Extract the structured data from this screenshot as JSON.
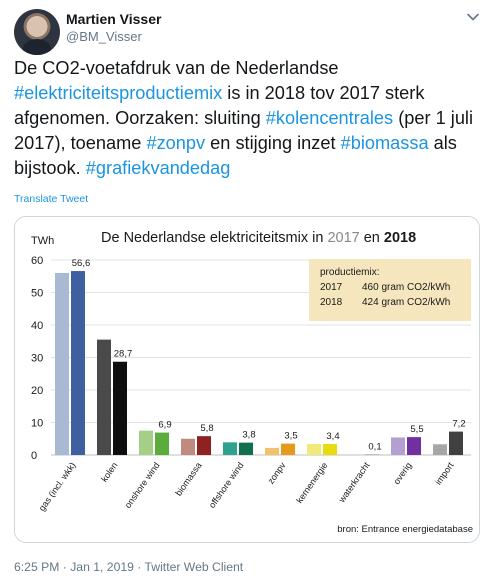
{
  "header": {
    "name": "Martien Visser",
    "handle": "@BM_Visser"
  },
  "tweet": {
    "segments": [
      {
        "text": "De CO2-voetafdruk van de Nederlandse ",
        "hashtag": false
      },
      {
        "text": "#elektriciteitsproductiemix",
        "hashtag": true
      },
      {
        "text": " is in 2018 tov 2017 sterk afgenomen. Oorzaken: sluiting ",
        "hashtag": false
      },
      {
        "text": "#kolencentrales",
        "hashtag": true
      },
      {
        "text": " (per 1 juli 2017), toename ",
        "hashtag": false
      },
      {
        "text": "#zonpv",
        "hashtag": true
      },
      {
        "text": " en stijging inzet ",
        "hashtag": false
      },
      {
        "text": "#biomassa",
        "hashtag": true
      },
      {
        "text": " als bijstook. ",
        "hashtag": false
      },
      {
        "text": "#grafiekvandedag",
        "hashtag": true
      }
    ],
    "translate_label": "Translate Tweet"
  },
  "footer": {
    "timestamp": "6:25 PM · Jan 1, 2019 · ",
    "client": "Twitter Web Client"
  },
  "colors": {
    "hashtag": "#1b95e0",
    "muted": "#657786",
    "legend_box": "#f5e6bd"
  },
  "chart_data": {
    "type": "bar",
    "title_prefix": "De Nederlandse elektriciteitsmix in ",
    "title_year1": "2017",
    "title_mid": " en ",
    "title_year2": "2018",
    "ylabel": "TWh",
    "ylim": [
      0,
      60
    ],
    "yticks": [
      0,
      10,
      20,
      30,
      40,
      50,
      60
    ],
    "categories": [
      "gas (incl. wkk)",
      "kolen",
      "onshore wind",
      "biomassa",
      "offshore wind",
      "zonpv",
      "kernenergie",
      "waterkracht",
      "overig",
      "import"
    ],
    "series": [
      {
        "values": [
          56.0,
          35.5,
          7.5,
          5.0,
          3.9,
          2.2,
          3.4,
          0.1,
          5.4,
          3.3
        ]
      },
      {
        "values": [
          56.6,
          28.7,
          6.9,
          5.8,
          3.8,
          3.5,
          3.4,
          0.1,
          5.5,
          7.2
        ]
      }
    ],
    "data_labels": [
      "56,6",
      "28,7",
      "6,9",
      "5,8",
      "3,8",
      "3,5",
      "3,4",
      "0,1",
      "5,5",
      "7,2"
    ],
    "category_colors": [
      [
        "#a8b9d4",
        "#3f5fa0"
      ],
      [
        "#4a4a4a",
        "#0e0e0e"
      ],
      [
        "#a3cf86",
        "#5cac3c"
      ],
      [
        "#c08a80",
        "#8e2222"
      ],
      [
        "#2fa28f",
        "#0f6f50"
      ],
      [
        "#f0c26e",
        "#e59a1f"
      ],
      [
        "#f0ea7a",
        "#e6dc10"
      ],
      [
        "#bfbfbf",
        "#7f7f7f"
      ],
      [
        "#b39fd0",
        "#7030a0"
      ],
      [
        "#a6a6a6",
        "#404040"
      ]
    ],
    "legend": {
      "title": "productiemix:",
      "rows": [
        {
          "year": "2017",
          "value": "460 gram CO2/kWh"
        },
        {
          "year": "2018",
          "value": "424 gram CO2/kWh"
        }
      ]
    },
    "source": "bron: Entrance energiedatabase",
    "grid": true,
    "legend_position": "top-right"
  }
}
